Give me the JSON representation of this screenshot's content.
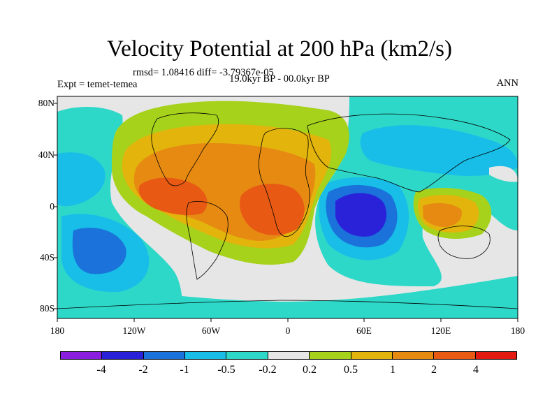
{
  "title": "Velocity Potential at 200 hPa (km2/s)",
  "stats": "rmsd= 1.08416 diff= -3.79367e-05",
  "experiment": "Expt = temet-temea",
  "period": "19.0kyr BP - 00.0kyr BP",
  "season": "ANN",
  "x_ticks": [
    "180",
    "120W",
    "60W",
    "0",
    "60E",
    "120E",
    "180"
  ],
  "y_ticks": [
    "80N",
    "40N",
    "0",
    "40S",
    "80S"
  ],
  "colorbar": {
    "colors": [
      "#8a1fe0",
      "#2a22d8",
      "#1a72da",
      "#18bee8",
      "#2ed8c8",
      "#e6e6e6",
      "#a6d21c",
      "#e2b40c",
      "#e68a12",
      "#e85a14",
      "#e21a12"
    ],
    "labels": [
      "-4",
      "-2",
      "-1",
      "-0.5",
      "-0.2",
      "0.2",
      "0.5",
      "1",
      "2",
      "4"
    ]
  }
}
